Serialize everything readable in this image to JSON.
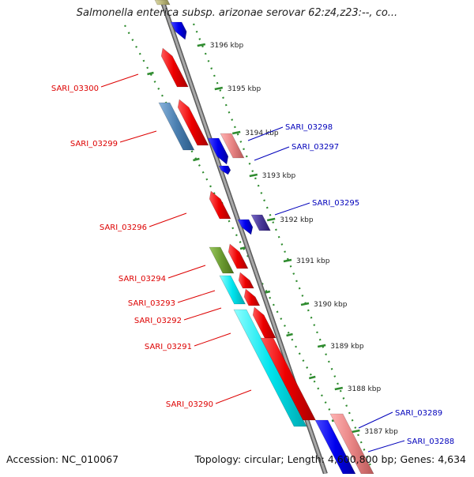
{
  "title": "Salmonella enterica subsp. arizonae serovar 62:z4,z23:--, co...",
  "footer": {
    "accession": "Accession: NC_010067",
    "topology": "Topology: circular; Length: 4,600,800 bp; Genes: 4,634"
  },
  "ticks": [
    "3196 kbp",
    "3195 kbp",
    "3194 kbp",
    "3193 kbp",
    "3192 kbp",
    "3191 kbp",
    "3190 kbp",
    "3189 kbp",
    "3188 kbp",
    "3187 kbp"
  ],
  "gene_labels_left": [
    "SARI_03300",
    "SARI_03299",
    "SARI_03296",
    "SARI_03294",
    "SARI_03293",
    "SARI_03292",
    "SARI_03291",
    "SARI_03290"
  ],
  "gene_labels_right": [
    "SARI_03298",
    "SARI_03297",
    "SARI_03295",
    "SARI_03289",
    "SARI_03288"
  ],
  "colors": {
    "backbone": "#8a8a8a",
    "tick_line": "#2e8b2e",
    "label_left": "#dd0000",
    "label_right": "#0000bb",
    "red": "#e80000",
    "pink": "#e88888",
    "blue": "#0000e8",
    "cyan": "#00e0e8",
    "steel": "#4a7fb0",
    "olive": "#6a9a30",
    "purple": "#4a3a98",
    "khaki": "#b8b478"
  }
}
